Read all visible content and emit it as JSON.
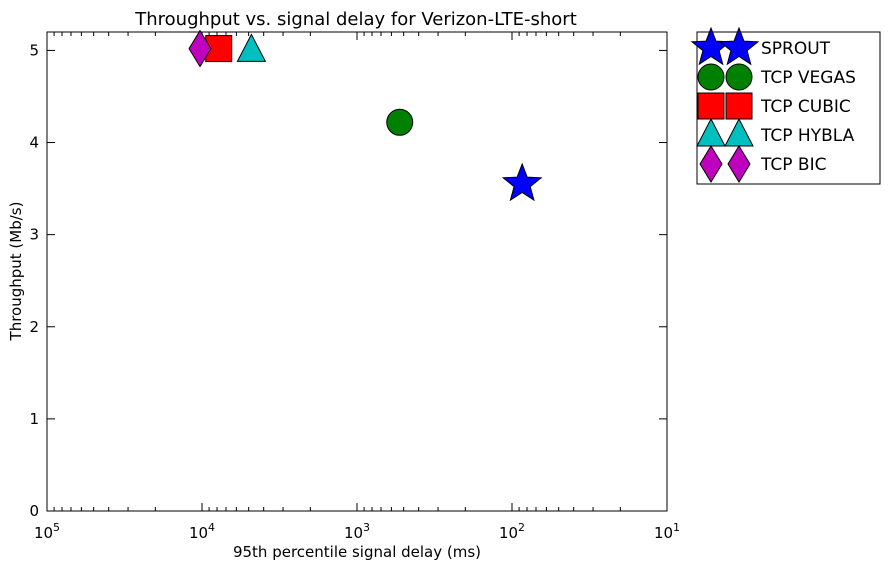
{
  "chart_data": {
    "type": "scatter",
    "title": "Throughput vs. signal delay for Verizon-LTE-short",
    "xlabel": "95th percentile signal delay (ms)",
    "ylabel": "Throughput (Mb/s)",
    "x_scale": "log",
    "x_reversed": true,
    "xlim": [
      100000,
      10
    ],
    "ylim": [
      0,
      5.2
    ],
    "x_ticks": [
      {
        "value": 100000,
        "base": "10",
        "exp": "5"
      },
      {
        "value": 10000,
        "base": "10",
        "exp": "4"
      },
      {
        "value": 1000,
        "base": "10",
        "exp": "3"
      },
      {
        "value": 100,
        "base": "10",
        "exp": "2"
      },
      {
        "value": 10,
        "base": "10",
        "exp": "1"
      }
    ],
    "y_ticks": [
      0,
      1,
      2,
      3,
      4,
      5
    ],
    "legend_position": "outside-top-right",
    "series": [
      {
        "name": "SPROUT",
        "x": 86,
        "y": 3.55,
        "marker": "star",
        "color": "#0000ff"
      },
      {
        "name": "TCP VEGAS",
        "x": 530,
        "y": 4.22,
        "marker": "circle",
        "color": "#008000"
      },
      {
        "name": "TCP CUBIC",
        "x": 7800,
        "y": 5.02,
        "marker": "square",
        "color": "#ff0000"
      },
      {
        "name": "TCP HYBLA",
        "x": 4800,
        "y": 5.0,
        "marker": "triangle",
        "color": "#00bfbf"
      },
      {
        "name": "TCP BIC",
        "x": 10300,
        "y": 5.02,
        "marker": "diamond",
        "color": "#bf00bf"
      }
    ]
  }
}
